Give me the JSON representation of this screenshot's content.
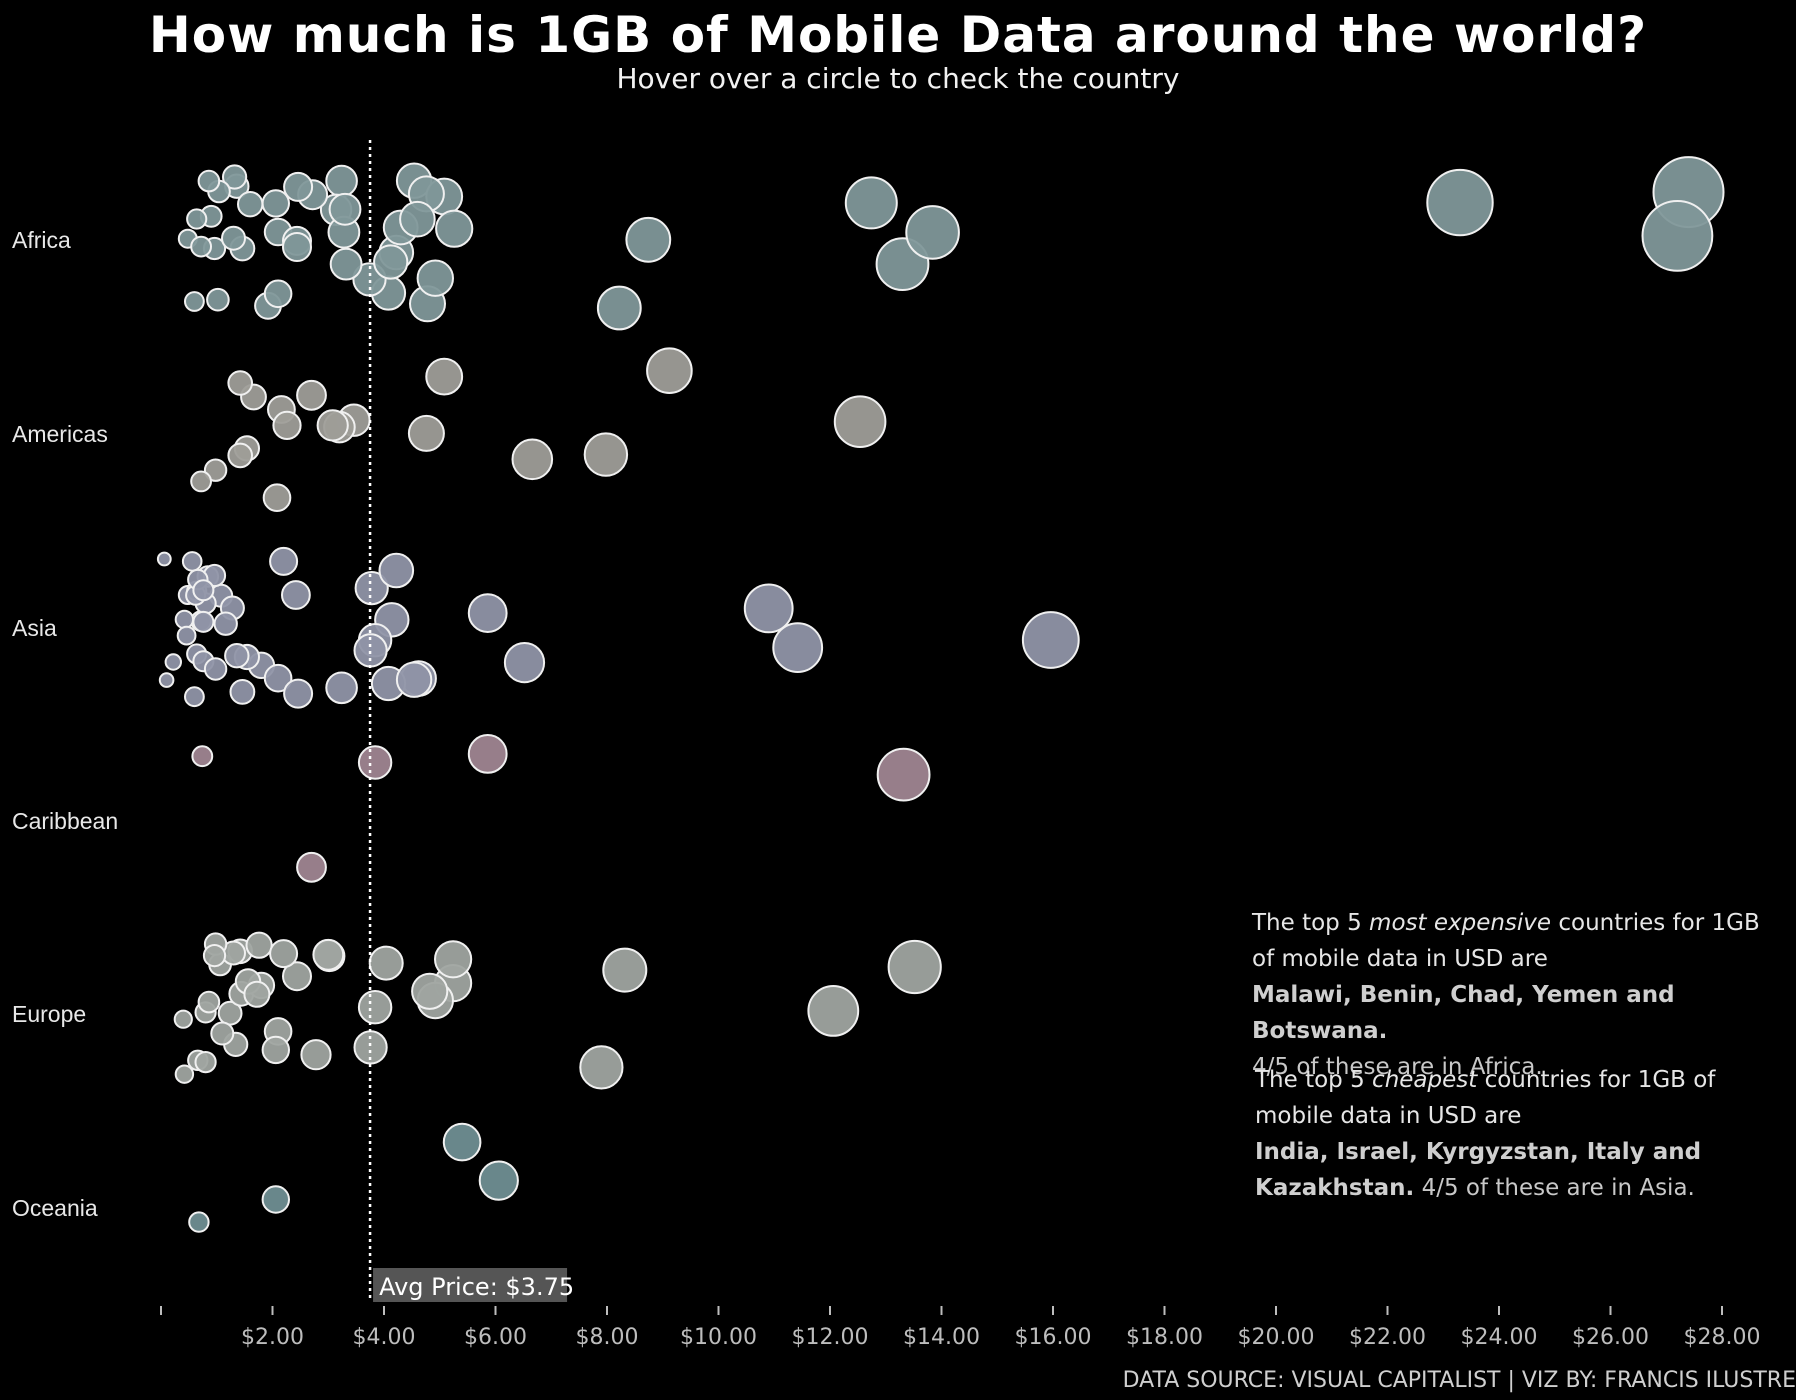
{
  "header": {
    "title": "How much is 1GB of Mobile Data around the world?",
    "subtitle": "Hover over a circle to check the country"
  },
  "annotations": {
    "expensive": {
      "pre": "The top 5 ",
      "em": "most expensive",
      "post": " countries for 1GB of mobile data in USD are",
      "countries": "Malawi, Benin, Chad, Yemen and Botswana.",
      "note": "4/5 of these are in Africa."
    },
    "cheapest": {
      "pre": "The top 5 ",
      "em": "cheapest",
      "post": " countries for 1GB of mobile data in USD are",
      "countries": "India, Israel, Kyrgyzstan, Italy and Kazakhstan.",
      "note": "4/5 of these are in Asia."
    }
  },
  "source": "DATA SOURCE: VISUAL CAPITALIST | VIZ BY: FRANCIS ILUSTRE",
  "chart_data": {
    "type": "scatter",
    "xlim": [
      0,
      28.5
    ],
    "x_ticks": [
      2,
      4,
      6,
      8,
      10,
      12,
      14,
      16,
      18,
      20,
      22,
      24,
      26,
      28
    ],
    "x_tick_labels": [
      "$2.00",
      "$4.00",
      "$6.00",
      "$8.00",
      "$10.00",
      "$12.00",
      "$14.00",
      "$16.00",
      "$18.00",
      "$20.00",
      "$22.00",
      "$24.00",
      "$26.00",
      "$28.00"
    ],
    "x_tick_format": "$0.00",
    "reference_line": {
      "value": 3.75,
      "label": "Avg Price: $3.75",
      "style": "dotted"
    },
    "grid": false,
    "legend": "none",
    "size_encodes": "price",
    "categories": [
      "Africa",
      "Americas",
      "Asia",
      "Caribbean",
      "Europe",
      "Oceania"
    ],
    "colors": {
      "Africa": "#7f9799",
      "Americas": "#9e9d98",
      "Asia": "#8f93a6",
      "Caribbean": "#9f8591",
      "Europe": "#9fa4a0",
      "Oceania": "#6f8e92",
      "stroke": "#f0f0f0"
    },
    "series": [
      {
        "category": "Africa",
        "values": [
          0.48,
          0.96,
          1.36,
          1.6,
          2.1,
          2.44,
          3.24,
          4.08,
          4.22,
          4.3,
          3.14,
          3.74,
          4.12,
          4.54,
          8.74,
          12.74,
          13.3,
          27.4,
          1.46,
          1.3,
          2.72,
          1.32,
          0.6,
          1.92,
          2.46,
          3.28,
          4.78,
          5.08,
          5.26,
          2.44,
          3.32,
          3.3,
          4.76,
          8.22,
          13.84,
          23.3,
          0.72,
          0.9,
          1.04,
          4.92,
          4.6,
          0.64,
          0.86,
          1.02,
          2.06,
          2.1,
          27.2
        ]
      },
      {
        "category": "Americas",
        "values": [
          1.66,
          1.54,
          3.46,
          0.98,
          1.42,
          1.42,
          2.7,
          3.2,
          5.08,
          9.12,
          12.54,
          6.66,
          7.98,
          2.08,
          2.16,
          2.26,
          4.76,
          3.08,
          0.72
        ]
      },
      {
        "category": "Asia",
        "values": [
          0.72,
          0.42,
          0.48,
          0.64,
          0.22,
          0.84,
          1.08,
          1.8,
          2.1,
          2.46,
          3.24,
          4.62,
          6.52,
          11.42,
          0.46,
          0.56,
          0.8,
          1.28,
          3.78,
          5.86,
          0.64,
          0.76,
          0.62,
          1.46,
          0.06,
          10.9,
          15.96,
          4.14,
          4.22,
          0.6,
          0.76,
          0.1,
          3.84,
          1.16,
          0.96,
          0.98,
          4.08,
          2.42,
          2.2,
          0.66,
          1.54,
          1.36,
          3.76,
          4.54,
          0.76
        ]
      },
      {
        "category": "Caribbean",
        "values": [
          2.7,
          13.32,
          0.74,
          3.84,
          5.86
        ]
      },
      {
        "category": "Europe",
        "values": [
          0.4,
          0.66,
          0.8,
          1.06,
          1.24,
          1.42,
          5.24,
          0.8,
          1.3,
          1.44,
          2.44,
          1.8,
          2.78,
          4.04,
          13.52,
          0.98,
          2.1,
          3.02,
          4.92,
          5.24,
          12.06,
          0.86,
          1.76,
          2.06,
          3.84,
          3.76,
          4.82,
          0.42,
          1.34,
          1.1,
          1.56,
          1.72,
          3.0,
          7.9,
          0.96,
          2.2,
          8.32
        ]
      },
      {
        "category": "Oceania",
        "values": [
          6.06,
          5.4,
          0.68,
          2.06
        ]
      }
    ]
  }
}
